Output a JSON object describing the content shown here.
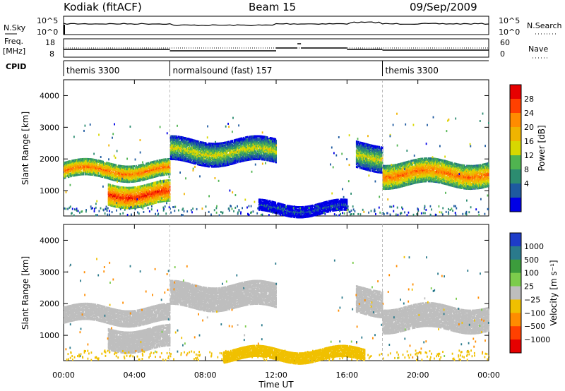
{
  "header": {
    "station": "Kodiak (fitACF)",
    "beam": "Beam 15",
    "date": "09/Sep/2009"
  },
  "top_panels": {
    "nsky_label": "N.Sky",
    "nsky_ticks": [
      "10^5",
      "10^0"
    ],
    "nsearch_label": "N.Search",
    "nsearch_ticks": [
      "10^5",
      "10^0"
    ],
    "freq_label_1": "Freq.",
    "freq_label_2": "[MHz]",
    "freq_ticks": [
      "18",
      "8"
    ],
    "nave_label": "Nave",
    "nave_ticks": [
      "60",
      "0"
    ],
    "cpid_label": "CPID",
    "cpid_segments": [
      {
        "label": "themis 3300",
        "start_hour": 0
      },
      {
        "label": "normalsound (fast) 157",
        "start_hour": 6
      },
      {
        "label": "themis 3300",
        "start_hour": 18
      }
    ]
  },
  "power_colorbar": {
    "label": "Power [dB]",
    "ticks": [
      "28",
      "24",
      "20",
      "16",
      "12",
      "8",
      "4"
    ],
    "colors": [
      "#e60000",
      "#ff4000",
      "#ff8c00",
      "#f0b400",
      "#d8d800",
      "#50b450",
      "#2c8c70",
      "#1e5aa0",
      "#0000e6"
    ]
  },
  "velocity_colorbar": {
    "label": "Velocity [m s⁻¹]",
    "ticks": [
      "1000",
      "500",
      "100",
      "25",
      "−25",
      "−100",
      "−500",
      "−1000"
    ],
    "colors": [
      "#1e3cc8",
      "#2a7a8c",
      "#3c9c3c",
      "#7ccc4c",
      "#bebebe",
      "#f0c000",
      "#ff8c00",
      "#ff4000",
      "#e60000"
    ]
  },
  "chart_data": [
    {
      "type": "heatmap",
      "quantity": "Power",
      "ylabel": "Slant Range [km]",
      "xlabel": "",
      "ylim": [
        200,
        4500
      ],
      "xlim": [
        0,
        24
      ],
      "yticks": [
        "4000",
        "3000",
        "2000",
        "1000"
      ],
      "ytick_values": [
        4000,
        3000,
        2000,
        1000
      ],
      "bands": [
        {
          "t": [
            0,
            6
          ],
          "range": [
            1400,
            1900
          ],
          "dB": 24
        },
        {
          "t": [
            2.5,
            6
          ],
          "range": [
            600,
            1200
          ],
          "dB": 28
        },
        {
          "t": [
            6,
            12
          ],
          "range": [
            1900,
            2600
          ],
          "dB": 16
        },
        {
          "t": [
            16.5,
            18
          ],
          "range": [
            1700,
            2500
          ],
          "dB": 16
        },
        {
          "t": [
            18,
            24
          ],
          "range": [
            1200,
            1900
          ],
          "dB": 24
        },
        {
          "t": [
            11,
            16
          ],
          "range": [
            300,
            600
          ],
          "dB": 4
        }
      ]
    },
    {
      "type": "heatmap",
      "quantity": "Velocity",
      "ylabel": "Slant Range [km]",
      "xlabel": "Time UT",
      "ylim": [
        200,
        4500
      ],
      "xlim": [
        0,
        24
      ],
      "yticks": [
        "4000",
        "3000",
        "2000",
        "1000"
      ],
      "ytick_values": [
        4000,
        3000,
        2000,
        1000
      ],
      "xticks": [
        "00:00",
        "04:00",
        "08:00",
        "12:00",
        "16:00",
        "20:00",
        "00:00"
      ],
      "xtick_values": [
        0,
        4,
        8,
        12,
        16,
        20,
        24
      ],
      "bands": [
        {
          "t": [
            0,
            6
          ],
          "range": [
            1400,
            1900
          ],
          "velocity": 0
        },
        {
          "t": [
            2.5,
            6
          ],
          "range": [
            600,
            1200
          ],
          "velocity": 0
        },
        {
          "t": [
            6,
            12
          ],
          "range": [
            1900,
            2600
          ],
          "velocity": 0
        },
        {
          "t": [
            16.5,
            18
          ],
          "range": [
            1700,
            2500
          ],
          "velocity": 0
        },
        {
          "t": [
            18,
            24
          ],
          "range": [
            1200,
            1900
          ],
          "velocity": 0
        },
        {
          "t": [
            9,
            17
          ],
          "range": [
            250,
            550
          ],
          "velocity": -50
        }
      ]
    }
  ]
}
